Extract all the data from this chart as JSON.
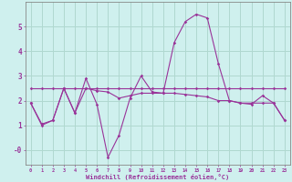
{
  "xlabel": "Windchill (Refroidissement éolien,°C)",
  "background_color": "#cff0ee",
  "grid_color": "#b0d8d0",
  "line_color": "#993399",
  "x": [
    0,
    1,
    2,
    3,
    4,
    5,
    6,
    7,
    8,
    9,
    10,
    11,
    12,
    13,
    14,
    15,
    16,
    17,
    18,
    19,
    20,
    21,
    22,
    23
  ],
  "line1": [
    1.9,
    1.0,
    1.2,
    2.5,
    1.5,
    2.9,
    1.85,
    -0.3,
    0.6,
    2.1,
    3.0,
    2.35,
    2.3,
    4.35,
    5.2,
    5.5,
    5.35,
    3.5,
    2.0,
    1.9,
    1.85,
    2.2,
    1.9,
    1.2
  ],
  "line2": [
    1.9,
    1.05,
    1.2,
    2.5,
    1.5,
    2.5,
    2.4,
    2.35,
    2.1,
    2.2,
    2.3,
    2.3,
    2.3,
    2.3,
    2.25,
    2.2,
    2.15,
    2.0,
    2.0,
    1.9,
    1.9,
    1.9,
    1.9,
    1.2
  ],
  "line3": [
    2.5,
    2.5,
    2.5,
    2.5,
    2.5,
    2.5,
    2.5,
    2.5,
    2.5,
    2.5,
    2.5,
    2.5,
    2.5,
    2.5,
    2.5,
    2.5,
    2.5,
    2.5,
    2.5,
    2.5,
    2.5,
    2.5,
    2.5,
    2.5
  ],
  "ylim": [
    -0.6,
    6.0
  ],
  "xlim": [
    -0.5,
    23.5
  ],
  "yticks": [
    0,
    1,
    2,
    3,
    4,
    5
  ],
  "ytick_labels": [
    "-0",
    "1",
    "2",
    "3",
    "4",
    "5"
  ]
}
